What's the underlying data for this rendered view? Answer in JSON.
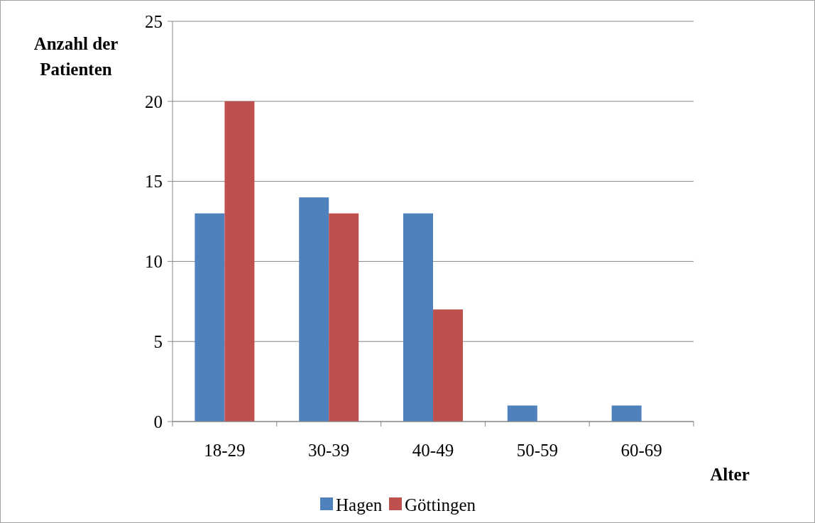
{
  "chart_data": {
    "type": "bar",
    "xlabel": "Alter",
    "ylabel": "Anzahl der Patienten",
    "categories": [
      "18-29",
      "30-39",
      "40-49",
      "50-59",
      "60-69"
    ],
    "series": [
      {
        "name": "Hagen",
        "color": "#4f81bd",
        "values": [
          13,
          14,
          13,
          1,
          1
        ]
      },
      {
        "name": "Göttingen",
        "color": "#c0504d",
        "values": [
          20,
          13,
          7,
          0,
          0
        ]
      }
    ],
    "ylim": [
      0,
      25
    ],
    "yticks": [
      0,
      5,
      10,
      15,
      20,
      25
    ],
    "grid": "y",
    "legend": "bottom"
  }
}
